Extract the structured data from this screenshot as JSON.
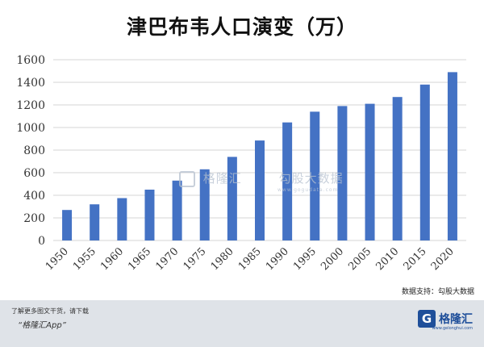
{
  "chart_data": {
    "type": "bar",
    "title": "津巴布韦人口演变（万）",
    "categories": [
      "1950",
      "1955",
      "1960",
      "1965",
      "1970",
      "1975",
      "1980",
      "1985",
      "1990",
      "1995",
      "2000",
      "2005",
      "2010",
      "2015",
      "2020"
    ],
    "values": [
      270,
      320,
      375,
      450,
      530,
      630,
      740,
      885,
      1045,
      1140,
      1190,
      1210,
      1270,
      1380,
      1490
    ],
    "yticks": [
      "0",
      "200",
      "400",
      "600",
      "800",
      "1000",
      "1200",
      "1400",
      "1600"
    ],
    "ylim": [
      0,
      1600
    ],
    "bar_color": "#4472c4",
    "grid": true
  },
  "source": "数据支持：勾股大数据",
  "watermark": {
    "brand": "格隆汇",
    "partner": "勾股大数据",
    "partner_url": "www.gogudata.com"
  },
  "footer": {
    "note": "了解更多图文干货，请下载",
    "app": "“格隆汇App”",
    "logo_letter": "G",
    "logo_text": "格隆汇",
    "logo_url": "www.gelonghui.com"
  }
}
